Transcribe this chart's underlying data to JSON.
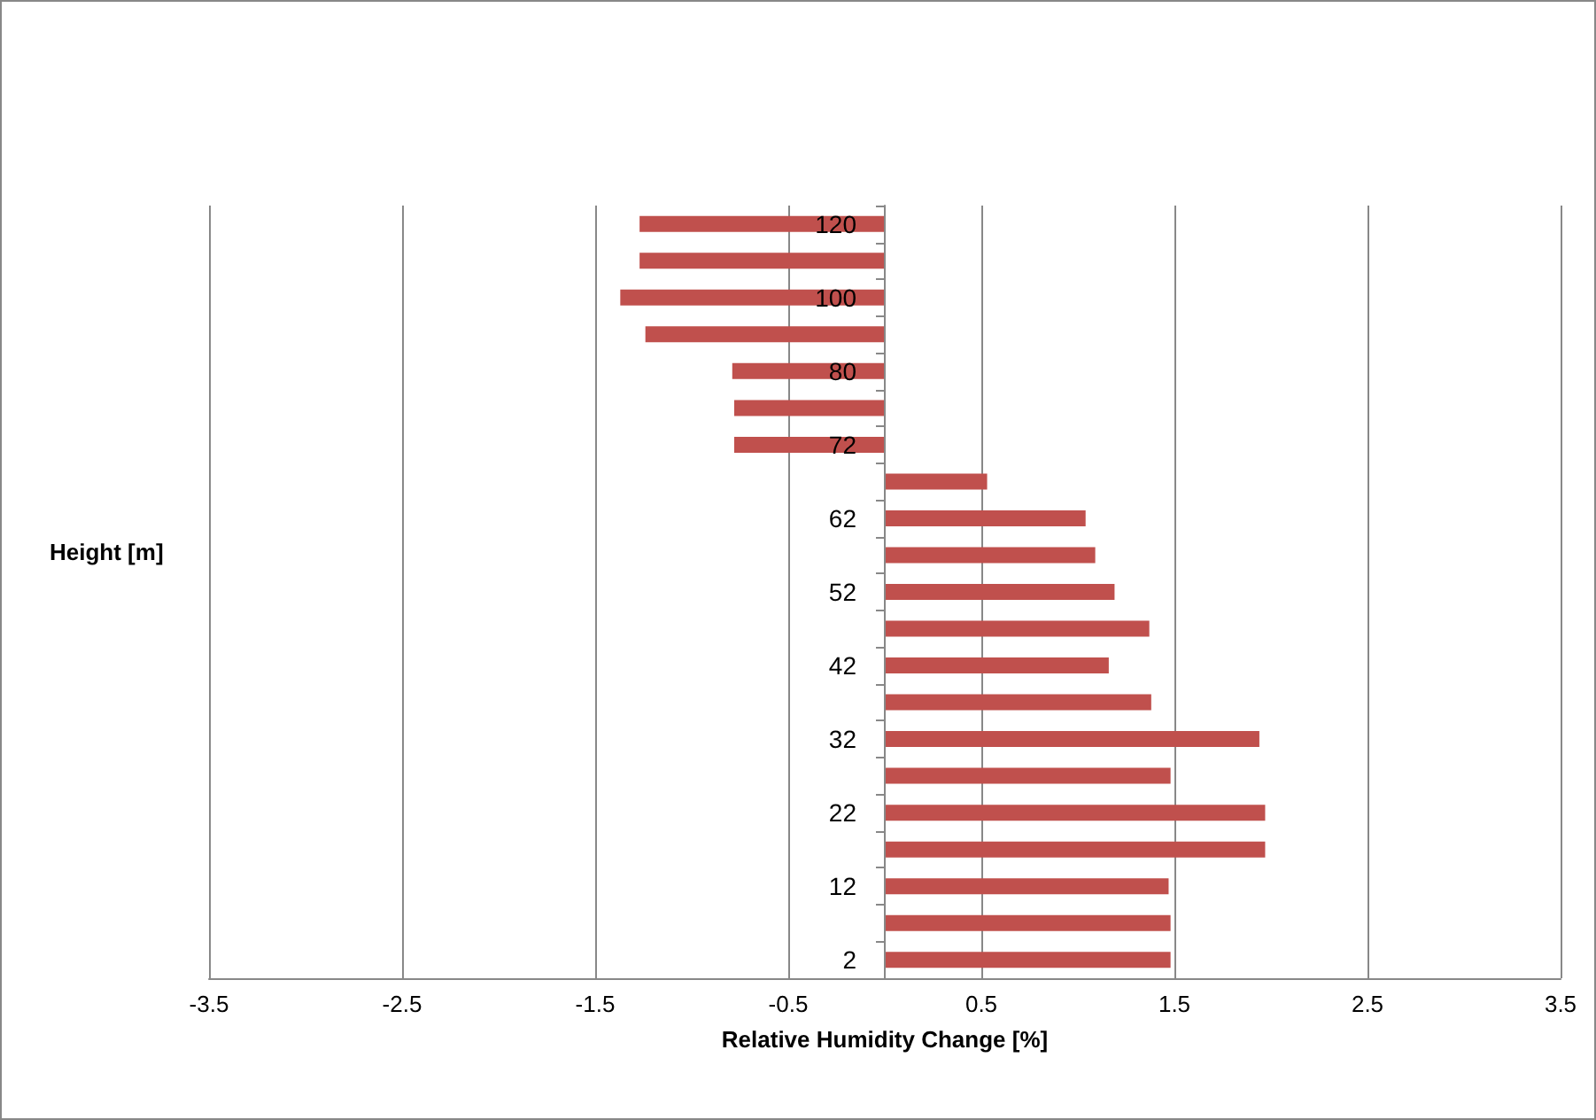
{
  "chart_data": {
    "type": "bar",
    "orientation": "horizontal",
    "xlabel": "Relative Humidity Change [%]",
    "ylabel": "Height [m]",
    "categories": [
      "120",
      null,
      "100",
      null,
      "80",
      null,
      "72",
      null,
      "62",
      null,
      "52",
      null,
      "42",
      null,
      "32",
      null,
      "22",
      null,
      "12",
      null,
      "2"
    ],
    "values": [
      -1.27,
      -1.27,
      -1.37,
      -1.24,
      -0.79,
      -0.78,
      -0.78,
      0.53,
      1.04,
      1.09,
      1.19,
      1.37,
      1.16,
      1.38,
      1.94,
      1.48,
      1.97,
      1.97,
      1.47,
      1.48,
      1.48
    ],
    "color": "#c0504d",
    "xlim": [
      -3.5,
      3.5
    ],
    "xticks": [
      -3.5,
      -2.5,
      -1.5,
      -0.5,
      0.5,
      1.5,
      2.5,
      3.5
    ],
    "grid": "x"
  }
}
